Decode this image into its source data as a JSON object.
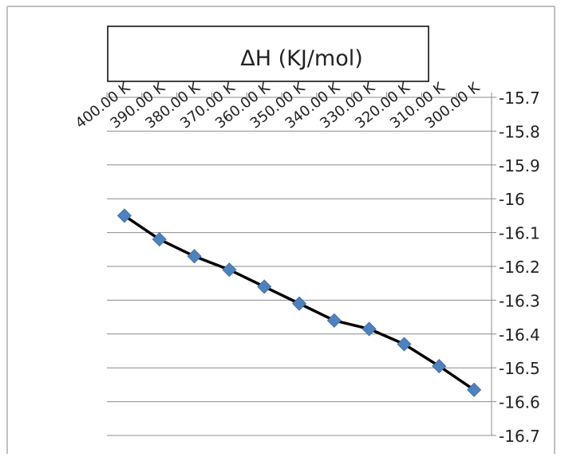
{
  "chart_data": {
    "type": "line",
    "title": "ΔH (KJ/mol)",
    "categories": [
      "400.00 K",
      "390.00 K",
      "380.00 K",
      "370.00 K",
      "360.00 K",
      "350.00 K",
      "340.00 K",
      "330.00 K",
      "320.00 K",
      "310.00 K",
      "300.00 K"
    ],
    "values": [
      -16.05,
      -16.12,
      -16.17,
      -16.21,
      -16.26,
      -16.31,
      -16.36,
      -16.385,
      -16.43,
      -16.495,
      -16.565
    ],
    "y_ticks": [
      "-15.7",
      "-15.8",
      "-15.9",
      "-16",
      "-16.1",
      "-16.2",
      "-16.3",
      "-16.4",
      "-16.5",
      "-16.6",
      "-16.7"
    ],
    "ylim": [
      -16.7,
      -15.7
    ],
    "y_axis_position": "right",
    "x_axis_position": "top",
    "grid": true,
    "legend": "none",
    "line_color": "#000000",
    "marker_color": "#4f81bd",
    "marker_shape": "diamond"
  }
}
